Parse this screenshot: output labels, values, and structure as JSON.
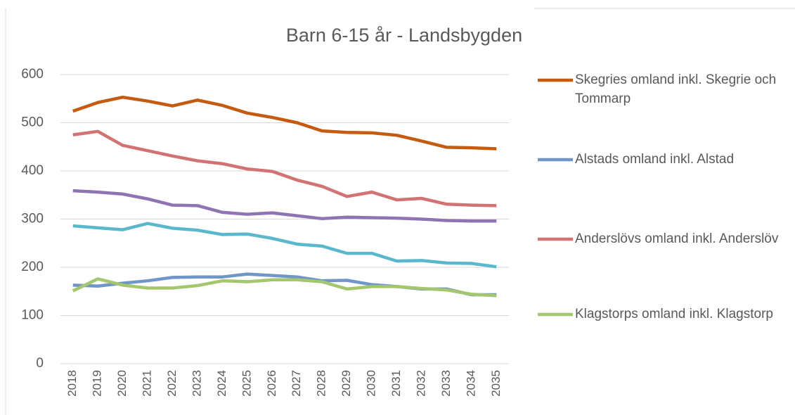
{
  "chart_data": {
    "type": "line",
    "title": "Barn 6-15 år - Landsbygden",
    "categories": [
      "2018",
      "2019",
      "2020",
      "2021",
      "2022",
      "2023",
      "2024",
      "2025",
      "2026",
      "2027",
      "2028",
      "2029",
      "2030",
      "2031",
      "2032",
      "2033",
      "2034",
      "2035"
    ],
    "series": [
      {
        "name": "Skegries omland inkl. Skegrie och Tommarp",
        "color": "#c55a11",
        "values": [
          524,
          542,
          553,
          545,
          535,
          547,
          536,
          520,
          511,
          500,
          483,
          480,
          479,
          474,
          462,
          449,
          448,
          446
        ]
      },
      {
        "name": "Alstads omland inkl. Alstad",
        "color": "#7095c8",
        "values": [
          163,
          161,
          167,
          172,
          179,
          180,
          180,
          186,
          183,
          180,
          172,
          173,
          164,
          160,
          155,
          155,
          143,
          143
        ]
      },
      {
        "name": "Anderslövs omland inkl. Anderslöv",
        "color": "#d07372",
        "values": [
          475,
          482,
          453,
          442,
          431,
          421,
          415,
          404,
          399,
          381,
          368,
          347,
          356,
          340,
          343,
          331,
          329,
          328
        ]
      },
      {
        "name": "Klagstorps omland inkl. Klagstorp",
        "color": "#a4c66c",
        "values": [
          151,
          176,
          163,
          157,
          157,
          162,
          172,
          170,
          174,
          174,
          170,
          155,
          160,
          160,
          156,
          153,
          144,
          141
        ]
      },
      {
        "color": "#8f74b4",
        "values": [
          359,
          356,
          352,
          342,
          329,
          328,
          314,
          310,
          313,
          307,
          301,
          304,
          303,
          302,
          300,
          297,
          296,
          296
        ]
      },
      {
        "color": "#5ab8cc",
        "values": [
          286,
          282,
          278,
          291,
          281,
          277,
          268,
          269,
          260,
          248,
          244,
          229,
          229,
          213,
          214,
          209,
          208,
          201
        ]
      }
    ],
    "ylim": [
      0,
      600
    ],
    "yticks": [
      0,
      100,
      200,
      300,
      400,
      500,
      600
    ],
    "grid": true
  }
}
